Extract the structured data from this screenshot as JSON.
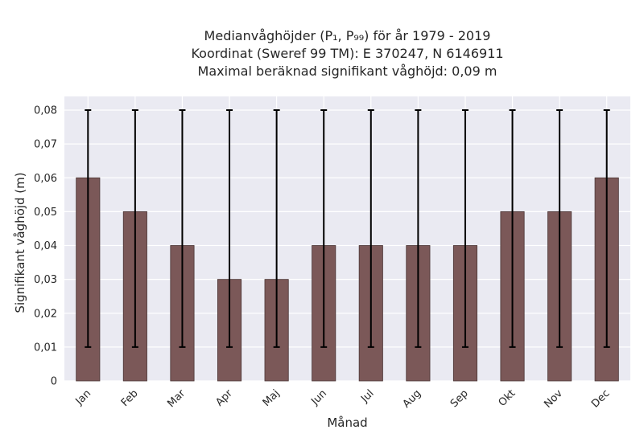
{
  "title": {
    "line1": "Medianvåghöjder (P₁, P₉₉) för år 1979 - 2019",
    "line2": "Koordinat (Sweref 99 TM): E 370247, N 6146911",
    "line3": "Maximal beräknad signifikant våghöjd: 0,09 m"
  },
  "colors": {
    "bar": "#7b5858",
    "plot_background": "#eaeaf2",
    "grid": "#ffffff",
    "error_bar": "#000000"
  },
  "chart_data": {
    "type": "bar",
    "categories": [
      "Jan",
      "Feb",
      "Mar",
      "Apr",
      "Maj",
      "Jun",
      "Jul",
      "Aug",
      "Sep",
      "Okt",
      "Nov",
      "Dec"
    ],
    "values": [
      0.06,
      0.05,
      0.04,
      0.03,
      0.03,
      0.04,
      0.04,
      0.04,
      0.04,
      0.05,
      0.05,
      0.06
    ],
    "error_low": [
      0.01,
      0.01,
      0.01,
      0.01,
      0.01,
      0.01,
      0.01,
      0.01,
      0.01,
      0.01,
      0.01,
      0.01
    ],
    "error_high": [
      0.08,
      0.08,
      0.08,
      0.08,
      0.08,
      0.08,
      0.08,
      0.08,
      0.08,
      0.08,
      0.08,
      0.08
    ],
    "xlabel": "Månad",
    "ylabel": "Signifikant våghöjd (m)",
    "ylim": [
      0,
      0.08
    ],
    "yticks": [
      0,
      0.01,
      0.02,
      0.03,
      0.04,
      0.05,
      0.06,
      0.07,
      0.08
    ],
    "ytick_labels": [
      "0",
      "0,01",
      "0,02",
      "0,03",
      "0,04",
      "0,05",
      "0,06",
      "0,07",
      "0,08"
    ],
    "grid": true,
    "legend": "none"
  }
}
